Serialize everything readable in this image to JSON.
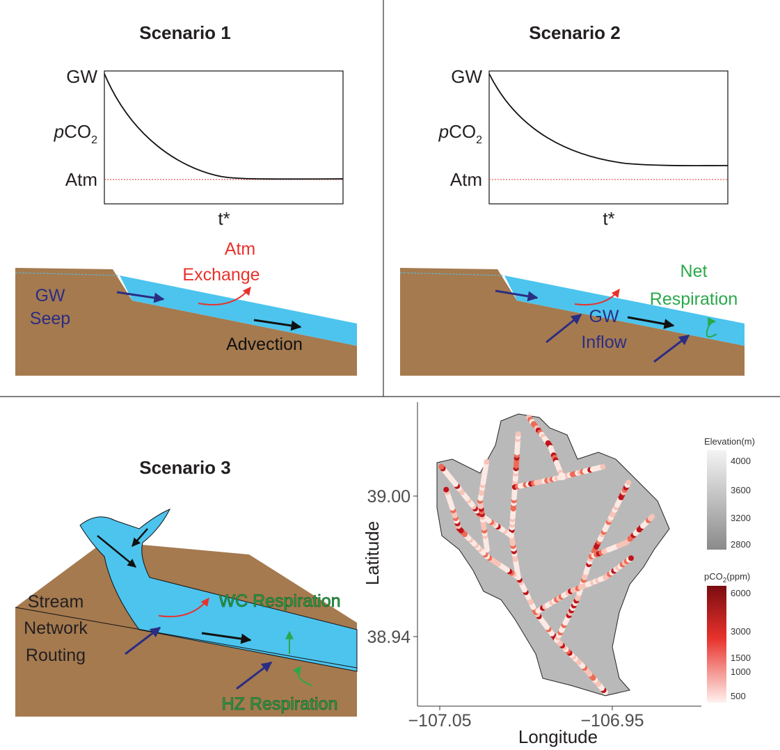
{
  "scenario1": {
    "title": "Scenario 1",
    "y_top": "GW",
    "y_mid_italic": "p",
    "y_mid": "CO",
    "y_mid_sub": "2",
    "y_bottom": "Atm",
    "x_label": "t*",
    "labels": [
      "Atm",
      "Exchange",
      "GW",
      "Seep",
      "Advection"
    ]
  },
  "scenario2": {
    "title": "Scenario 2",
    "y_top": "GW",
    "y_mid_italic": "p",
    "y_mid": "CO",
    "y_mid_sub": "2",
    "y_bottom": "Atm",
    "x_label": "t*",
    "labels": [
      "Net",
      "Respiration",
      "GW",
      "Inflow"
    ]
  },
  "scenario3": {
    "title": "Scenario 3",
    "labels": [
      "Stream",
      "Network",
      "Routing",
      "WC Respiration",
      "HZ Respiration"
    ]
  },
  "map": {
    "y_axis_title": "Latitude",
    "x_axis_title": "Longitude",
    "y_ticks": [
      "39.00",
      "38.94"
    ],
    "x_ticks": [
      "−107.05",
      "−106.95"
    ],
    "legend_elevation": {
      "title": "Elevation(m)",
      "ticks": [
        "4000",
        "3600",
        "3200",
        "2800"
      ]
    },
    "legend_pco2": {
      "title_prefix": "pCO",
      "title_sub": "2",
      "title_suffix": "(ppm)",
      "ticks": [
        "6000",
        "3000",
        "1500",
        "1000",
        "500"
      ]
    }
  }
}
